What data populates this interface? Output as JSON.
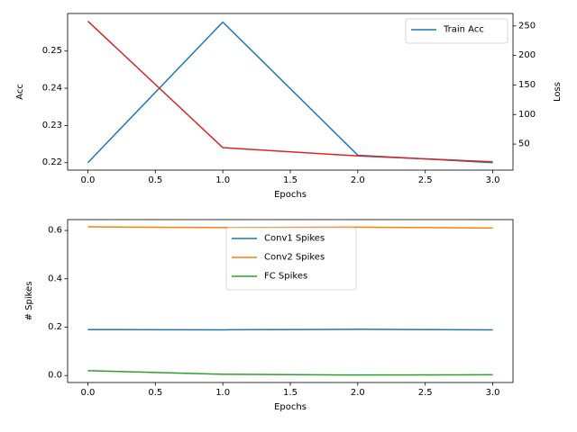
{
  "chart_data": [
    {
      "type": "line",
      "xlabel": "Epochs",
      "ylabel": "Acc",
      "y2label": "Loss",
      "xlim": [
        -0.15,
        3.15
      ],
      "ylim": [
        0.218,
        0.2601
      ],
      "y2lim": [
        6.0,
        271.0
      ],
      "xticks": [
        0.0,
        0.5,
        1.0,
        1.5,
        2.0,
        2.5,
        3.0
      ],
      "yticks": [
        0.22,
        0.23,
        0.24,
        0.25
      ],
      "y2ticks": [
        50,
        100,
        150,
        200,
        250
      ],
      "legend_position": "upper right",
      "series": [
        {
          "name": "Train Acc",
          "axis": "left",
          "color": "#1f77b4",
          "x": [
            0,
            1,
            2,
            3
          ],
          "y": [
            0.22,
            0.2578,
            0.222,
            0.22
          ]
        },
        {
          "axis": "right",
          "color": "#d62728",
          "x": [
            0,
            1,
            2,
            3
          ],
          "y": [
            258,
            44,
            30,
            20
          ]
        }
      ]
    },
    {
      "type": "line",
      "xlabel": "Epochs",
      "ylabel": "# Spikes",
      "xlim": [
        -0.15,
        3.15
      ],
      "ylim": [
        -0.029,
        0.645
      ],
      "xticks": [
        0.0,
        0.5,
        1.0,
        1.5,
        2.0,
        2.5,
        3.0
      ],
      "yticks": [
        0.0,
        0.2,
        0.4,
        0.6
      ],
      "legend_position": "upper center",
      "series": [
        {
          "name": "Conv1 Spikes",
          "color": "#1f77b4",
          "x": [
            0,
            1,
            2,
            3
          ],
          "y": [
            0.19,
            0.189,
            0.191,
            0.189
          ]
        },
        {
          "name": "Conv2 Spikes",
          "color": "#ff7f0e",
          "x": [
            0,
            1,
            2,
            3
          ],
          "y": [
            0.615,
            0.612,
            0.614,
            0.61
          ]
        },
        {
          "name": "FC Spikes",
          "color": "#2ca02c",
          "x": [
            0,
            1,
            2,
            3
          ],
          "y": [
            0.02,
            0.005,
            0.002,
            0.003
          ]
        }
      ]
    }
  ]
}
